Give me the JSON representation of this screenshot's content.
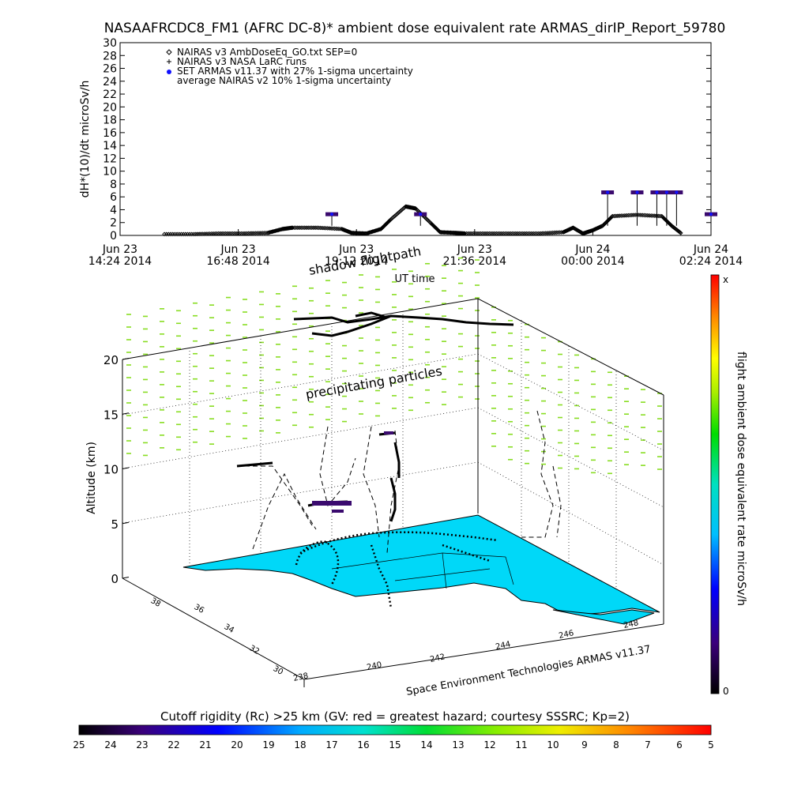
{
  "figure": {
    "title": "NASAAFRCDC8_FM1 (AFRC DC-8)* ambient dose equivalent rate ARMAS_dirIP_Report_59780",
    "footer_credit": "Space Environment Technologies ARMAS v11.37"
  },
  "chart_data": [
    {
      "type": "scatter",
      "title": "NASAAFRCDC8_FM1 (AFRC DC-8)* ambient dose equivalent rate ARMAS_dirIP_Report_59780",
      "xlabel": "UT time",
      "ylabel": "dH*(10)/dt microSv/h",
      "ylim": [
        0,
        30
      ],
      "yticks": [
        0,
        2,
        4,
        6,
        8,
        10,
        12,
        14,
        16,
        18,
        20,
        22,
        24,
        26,
        28,
        30
      ],
      "xlim_hours": [
        0,
        12
      ],
      "x_unit": "hours since Jun 23 14:24 2014 UT",
      "xticks": [
        {
          "line1": "Jun 23",
          "line2": "14:24 2014"
        },
        {
          "line1": "Jun 23",
          "line2": "16:48 2014"
        },
        {
          "line1": "Jun 23",
          "line2": "19:12 2014"
        },
        {
          "line1": "Jun 23",
          "line2": "21:36 2014"
        },
        {
          "line1": "Jun 24",
          "line2": "00:00 2014"
        },
        {
          "line1": "Jun 24",
          "line2": "02:24 2014"
        }
      ],
      "legend_position": "top-left",
      "legend": [
        {
          "symbol": "diamond",
          "label": "NAIRAS v3 AmbDoseEq_GO.txt SEP=0"
        },
        {
          "symbol": "plus",
          "label": "NAIRAS v3 NASA LaRC runs"
        },
        {
          "symbol": "blue-dot",
          "label": "SET ARMAS v11.37 with 27% 1-sigma uncertainty"
        },
        {
          "symbol": "none",
          "label": "average NAIRAS v2 10% 1-sigma uncertainty"
        }
      ],
      "series": [
        {
          "name": "NAIRAS v3 AmbDoseEq_GO.txt SEP=0",
          "x": [
            0.9,
            1.5,
            2.0,
            2.5,
            3.0,
            3.3,
            3.5,
            4.0,
            4.5,
            4.7,
            5.0,
            5.3,
            5.5,
            5.8,
            6.0,
            6.3,
            6.5,
            6.8,
            7.0,
            7.5,
            8.0,
            8.5,
            9.0,
            9.2,
            9.4,
            9.6,
            9.8,
            10.0,
            10.5,
            11.0,
            11.2,
            11.4
          ],
          "y": [
            0.2,
            0.2,
            0.3,
            0.3,
            0.4,
            1.0,
            1.2,
            1.2,
            1.0,
            0.4,
            0.3,
            1.0,
            2.5,
            4.5,
            4.2,
            2.0,
            0.5,
            0.4,
            0.3,
            0.3,
            0.3,
            0.3,
            0.5,
            1.2,
            0.3,
            0.8,
            1.5,
            3.0,
            3.2,
            3.0,
            1.5,
            0.3
          ]
        },
        {
          "name": "SET ARMAS v11.37 with 27% 1-sigma uncertainty",
          "x": [
            4.3,
            6.1,
            9.9,
            10.5,
            10.9,
            11.1,
            11.3,
            12.0
          ],
          "y": [
            3.3,
            3.3,
            6.7,
            6.7,
            6.7,
            6.7,
            6.7,
            3.3
          ]
        }
      ]
    },
    {
      "type": "scatter",
      "xlabel": "",
      "ylabel": "Altitude (km)",
      "zticks": [
        0,
        5,
        10,
        15,
        20
      ],
      "lat_ticks": [
        30,
        32,
        34,
        36,
        38
      ],
      "lon_ticks": [
        238,
        240,
        242,
        244,
        246,
        248
      ],
      "annotations": [
        "shadow flightpath",
        "precipitating particles"
      ],
      "colorbar_vertical": {
        "label": "flight ambient dose equivalent rate microSv/h",
        "top_label": "x",
        "bottom_label": "0"
      },
      "colorbar_horizontal": {
        "title": "Cutoff rigidity (Rc) >25 km (GV: red = greatest hazard; courtesy SSSRC; Kp=2)",
        "ticks": [
          "25",
          "24",
          "23",
          "22",
          "21",
          "20",
          "19",
          "18",
          "17",
          "16",
          "15",
          "14",
          "13",
          "12",
          "11",
          "10",
          "9",
          "8",
          "7",
          "6",
          "5"
        ]
      }
    }
  ],
  "colors": {
    "ocean": "#00d8f8",
    "armas_points": "#3a0a6e",
    "blue_points": "#1010ff",
    "particles": "#88dd22"
  }
}
